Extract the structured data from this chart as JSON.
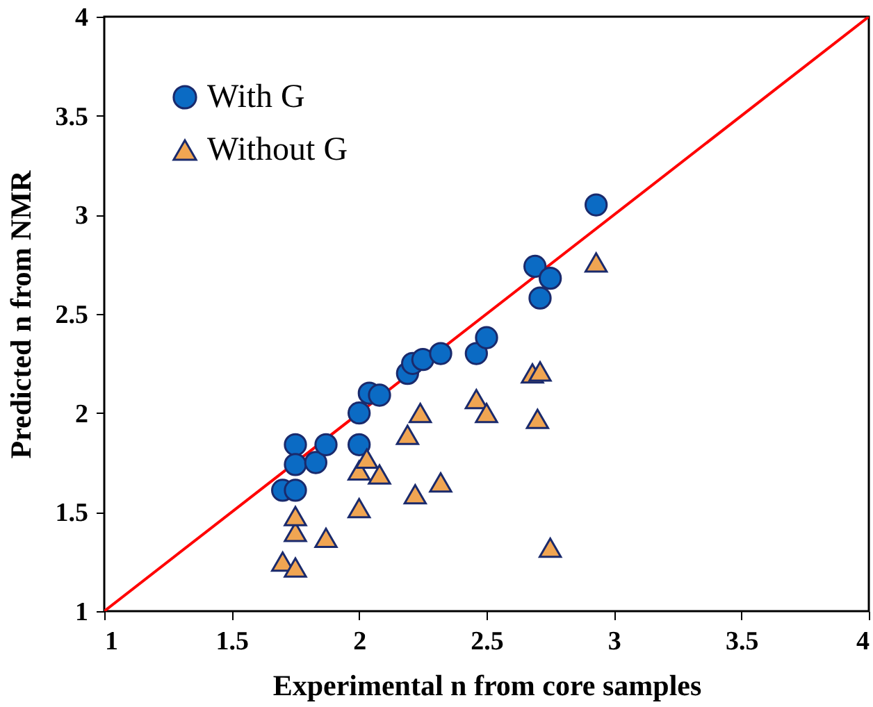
{
  "chart_data": {
    "type": "scatter",
    "xlabel": "Experimental n from core samples",
    "ylabel": "Predicted n from NMR",
    "xlim": [
      1,
      4
    ],
    "ylim": [
      1,
      4
    ],
    "xticks": [
      1,
      1.5,
      2,
      2.5,
      3,
      3.5,
      4
    ],
    "yticks": [
      1,
      1.5,
      2,
      2.5,
      3,
      3.5,
      4
    ],
    "grid": false,
    "legend": "top left",
    "series": [
      {
        "name": "With G",
        "color": "#0b6bc4",
        "marker": "circle",
        "x": [
          1.7,
          1.75,
          1.75,
          1.75,
          1.83,
          1.87,
          2.0,
          2.0,
          2.04,
          2.08,
          2.19,
          2.21,
          2.25,
          2.32,
          2.46,
          2.5,
          2.69,
          2.75,
          2.71,
          2.93
        ],
        "values": [
          1.61,
          1.61,
          1.84,
          1.74,
          1.75,
          1.84,
          2.0,
          1.84,
          2.1,
          2.09,
          2.2,
          2.25,
          2.27,
          2.3,
          2.3,
          2.38,
          2.74,
          2.68,
          2.58,
          3.05
        ]
      },
      {
        "name": "Without G",
        "color": "#f0a552",
        "marker": "triangle",
        "x": [
          1.7,
          1.75,
          1.75,
          1.75,
          1.87,
          2.0,
          2.0,
          2.03,
          2.08,
          2.19,
          2.22,
          2.24,
          2.32,
          2.46,
          2.5,
          2.68,
          2.71,
          2.7,
          2.75,
          2.93
        ],
        "values": [
          1.25,
          1.22,
          1.4,
          1.48,
          1.37,
          1.52,
          1.71,
          1.77,
          1.69,
          1.89,
          1.59,
          2.0,
          1.65,
          2.07,
          2.0,
          2.2,
          2.21,
          1.97,
          1.32,
          2.76
        ]
      },
      {
        "type": "line",
        "color": "#ff0000",
        "line_style": "solid",
        "x": [
          1,
          4
        ],
        "values": [
          1,
          4
        ]
      }
    ]
  }
}
